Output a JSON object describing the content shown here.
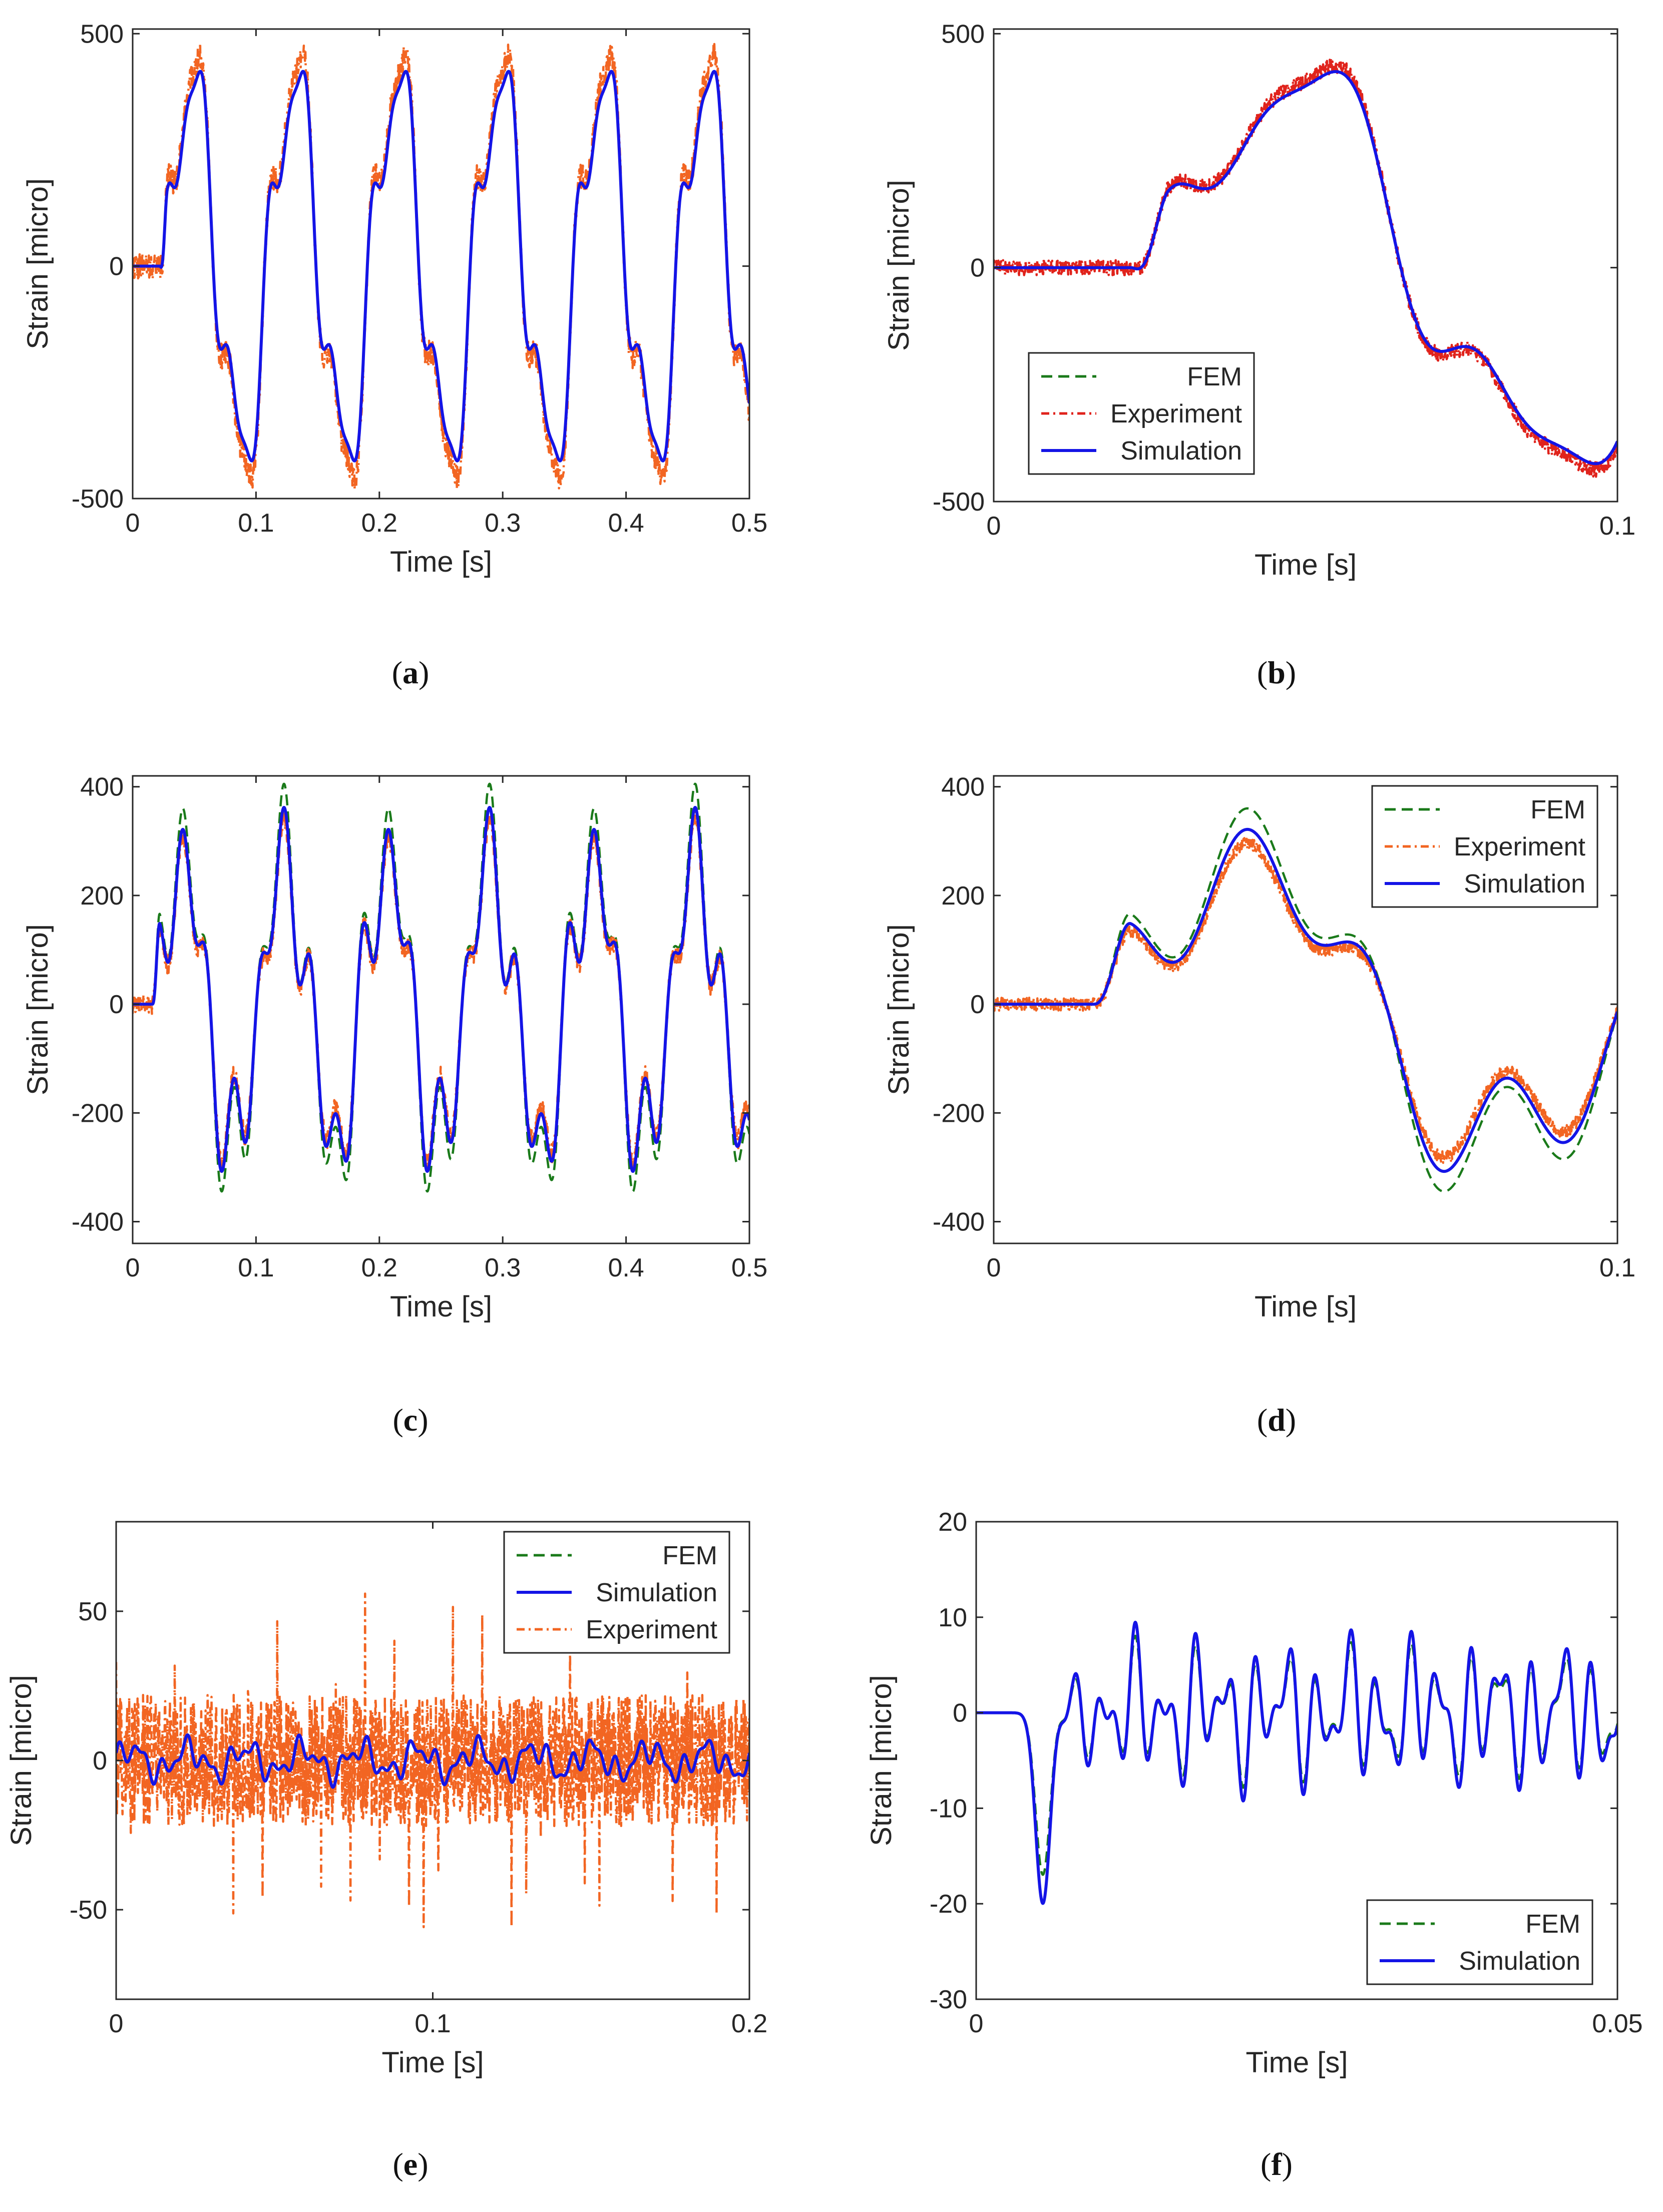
{
  "figure": {
    "colors": {
      "fem": "#1a7a1a",
      "experiment_red": "#e0231c",
      "experiment_orange": "#f26522",
      "simulation": "#1414e6",
      "axis": "#262626"
    }
  },
  "chart_data": [
    {
      "id": "a",
      "type": "line",
      "caption": "(a)",
      "caption_letter": "a",
      "xlabel": "Time [s]",
      "ylabel": "Strain [micro]",
      "xlim": [
        0,
        0.5
      ],
      "ylim": [
        -500,
        510
      ],
      "xticks": [
        0,
        0.1,
        0.2,
        0.3,
        0.4,
        0.5
      ],
      "xtick_labels": [
        "0",
        "0.1",
        "0.2",
        "0.3",
        "0.4",
        "0.5"
      ],
      "yticks": [
        -500,
        0,
        500
      ],
      "ytick_labels": [
        "-500",
        "0",
        "500"
      ],
      "legend": null,
      "series": [
        {
          "name": "FEM",
          "style": "dashed",
          "color": "#1a7a1a",
          "signal": "strain_a",
          "amp": 1.0,
          "noise": 0
        },
        {
          "name": "Experiment",
          "style": "dashdot",
          "color": "#f26522",
          "signal": "strain_a",
          "amp": 1.08,
          "noise": 28
        },
        {
          "name": "Simulation",
          "style": "solid",
          "color": "#1414e6",
          "signal": "strain_a",
          "amp": 1.0,
          "noise": 0
        }
      ]
    },
    {
      "id": "b",
      "type": "line",
      "caption": "(b)",
      "caption_letter": "b",
      "xlabel": "Time [s]",
      "ylabel": "Strain [micro]",
      "xlim": [
        0,
        0.1
      ],
      "ylim": [
        -500,
        510
      ],
      "xticks": [
        0,
        0.1
      ],
      "xtick_labels": [
        "0",
        "0.1"
      ],
      "yticks": [
        -500,
        0,
        500
      ],
      "ytick_labels": [
        "-500",
        "0",
        "500"
      ],
      "legend": {
        "position": "lower-left",
        "entries": [
          "FEM",
          "Experiment",
          "Simulation"
        ]
      },
      "series": [
        {
          "name": "FEM",
          "style": "dashed",
          "color": "#1a7a1a",
          "signal": "strain_a",
          "amp": 1.0,
          "noise": 0
        },
        {
          "name": "Experiment",
          "style": "dashdot",
          "color": "#e0231c",
          "signal": "strain_a",
          "amp": 1.03,
          "noise": 16
        },
        {
          "name": "Simulation",
          "style": "solid",
          "color": "#1414e6",
          "signal": "strain_a",
          "amp": 1.0,
          "noise": 0
        }
      ]
    },
    {
      "id": "c",
      "type": "line",
      "caption": "(c)",
      "caption_letter": "c",
      "xlabel": "Time [s]",
      "ylabel": "Strain [micro]",
      "xlim": [
        0,
        0.5
      ],
      "ylim": [
        -440,
        420
      ],
      "xticks": [
        0,
        0.1,
        0.2,
        0.3,
        0.4,
        0.5
      ],
      "xtick_labels": [
        "0",
        "0.1",
        "0.2",
        "0.3",
        "0.4",
        "0.5"
      ],
      "yticks": [
        -400,
        -200,
        0,
        200,
        400
      ],
      "ytick_labels": [
        "-400",
        "-200",
        "0",
        "200",
        "400"
      ],
      "legend": null,
      "series": [
        {
          "name": "FEM",
          "style": "dashed",
          "color": "#1a7a1a",
          "signal": "strain_c",
          "amp": 1.12,
          "noise": 0
        },
        {
          "name": "Experiment",
          "style": "dashdot",
          "color": "#f26522",
          "signal": "strain_c",
          "amp": 0.95,
          "noise": 18
        },
        {
          "name": "Simulation",
          "style": "solid",
          "color": "#1414e6",
          "signal": "strain_c",
          "amp": 1.0,
          "noise": 0
        }
      ]
    },
    {
      "id": "d",
      "type": "line",
      "caption": "(d)",
      "caption_letter": "d",
      "xlabel": "Time [s]",
      "ylabel": "Strain [micro]",
      "xlim": [
        0,
        0.1
      ],
      "ylim": [
        -440,
        420
      ],
      "xticks": [
        0,
        0.1
      ],
      "xtick_labels": [
        "0",
        "0.1"
      ],
      "yticks": [
        -400,
        -200,
        0,
        200,
        400
      ],
      "ytick_labels": [
        "-400",
        "-200",
        "0",
        "200",
        "400"
      ],
      "legend": {
        "position": "top-right",
        "entries": [
          "FEM",
          "Experiment",
          "Simulation"
        ]
      },
      "series": [
        {
          "name": "FEM",
          "style": "dashed",
          "color": "#1a7a1a",
          "signal": "strain_c",
          "amp": 1.12,
          "noise": 0
        },
        {
          "name": "Experiment",
          "style": "dashdot",
          "color": "#f26522",
          "signal": "strain_c",
          "amp": 0.92,
          "noise": 12
        },
        {
          "name": "Simulation",
          "style": "solid",
          "color": "#1414e6",
          "signal": "strain_c",
          "amp": 1.0,
          "noise": 0
        }
      ]
    },
    {
      "id": "e",
      "type": "line",
      "caption": "(e)",
      "caption_letter": "e",
      "xlabel": "Time [s]",
      "ylabel": "Strain [micro]",
      "xlim": [
        0,
        0.2
      ],
      "ylim": [
        -80,
        80
      ],
      "xticks": [
        0,
        0.1,
        0.2
      ],
      "xtick_labels": [
        "0",
        "0.1",
        "0.2"
      ],
      "yticks": [
        -50,
        0,
        50
      ],
      "ytick_labels": [
        "-50",
        "0",
        "50"
      ],
      "legend": {
        "position": "top-right",
        "entries": [
          "FEM",
          "Simulation",
          "Experiment"
        ]
      },
      "series": [
        {
          "name": "Experiment",
          "style": "dashdot",
          "color": "#f26522",
          "signal": "noise_e",
          "amp": 1.0,
          "noise": 22
        },
        {
          "name": "FEM",
          "style": "dashed",
          "color": "#1a7a1a",
          "signal": "small_e",
          "amp": 1.0,
          "noise": 0
        },
        {
          "name": "Simulation",
          "style": "solid",
          "color": "#1414e6",
          "signal": "small_e",
          "amp": 1.0,
          "noise": 0
        }
      ]
    },
    {
      "id": "f",
      "type": "line",
      "caption": "(f)",
      "caption_letter": "f",
      "xlabel": "Time [s]",
      "ylabel": "Strain [micro]",
      "xlim": [
        0,
        0.05
      ],
      "ylim": [
        -30,
        20
      ],
      "xticks": [
        0,
        0.05
      ],
      "xtick_labels": [
        "0",
        "0.05"
      ],
      "yticks": [
        -30,
        -20,
        -10,
        0,
        10,
        20
      ],
      "ytick_labels": [
        "-30",
        "-20",
        "-10",
        "0",
        "10",
        "20"
      ],
      "legend": {
        "position": "lower-right",
        "entries": [
          "FEM",
          "Simulation"
        ]
      },
      "series": [
        {
          "name": "FEM",
          "style": "dashed",
          "color": "#1a7a1a",
          "signal": "strain_f",
          "amp": 0.85,
          "noise": 0
        },
        {
          "name": "Simulation",
          "style": "solid",
          "color": "#1414e6",
          "signal": "strain_f",
          "amp": 1.0,
          "noise": 0
        }
      ]
    }
  ]
}
